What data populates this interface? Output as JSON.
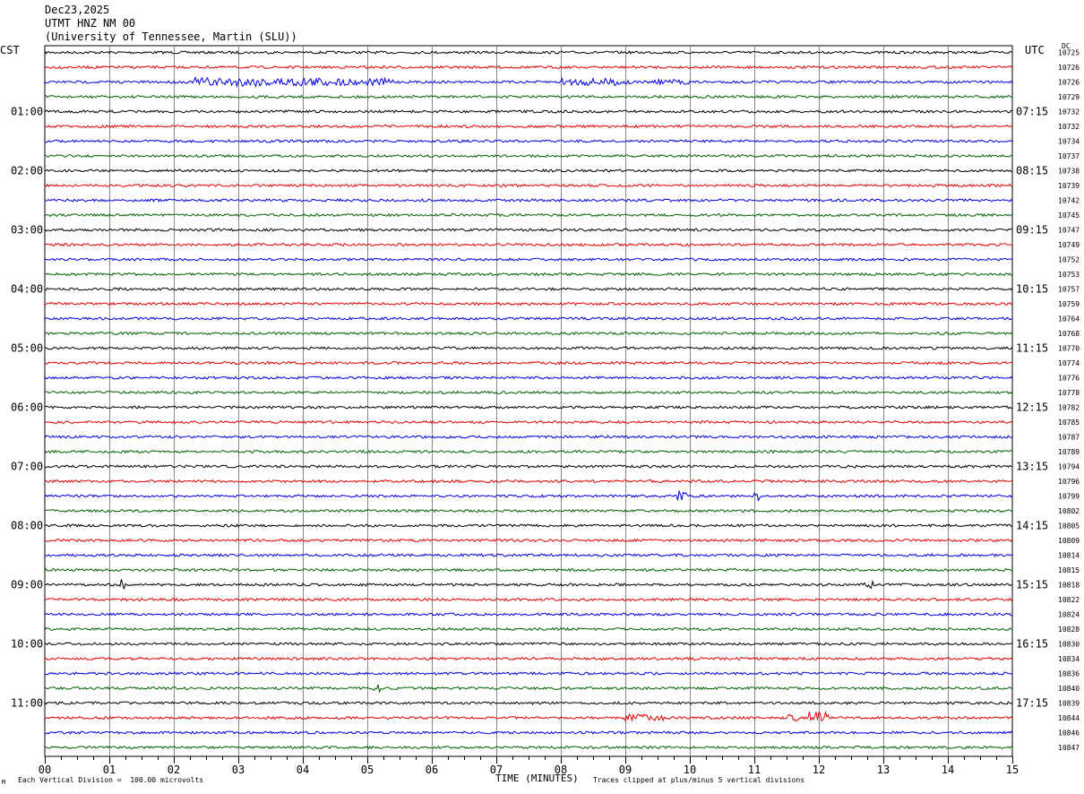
{
  "header": {
    "date": "Dec23,2025",
    "station": "UTMT HNZ NM 00",
    "institution": "(University of Tennessee, Martin (SLU))"
  },
  "left_zone_label": "CST",
  "right_zone_label": "UTC",
  "dc_label": "DC",
  "footer": {
    "scale_note": "Each Vertical Division =  100.00 microvolts",
    "xlabel": "TIME (MINUTES)",
    "clip_note": "Traces clipped at plus/minus 5 vertical divisions",
    "corner_mark": "M"
  },
  "trace_colors": [
    "#000000",
    "#e00000",
    "#0000e0",
    "#006000"
  ],
  "chart_data": {
    "type": "line",
    "title": "UTMT HNZ NM 00",
    "xlabel": "TIME (MINUTES)",
    "xlim": [
      0,
      15
    ],
    "x_ticks": [
      "00",
      "01",
      "02",
      "03",
      "04",
      "05",
      "06",
      "07",
      "08",
      "09",
      "10",
      "11",
      "12",
      "13",
      "14",
      "15"
    ],
    "rows": 48,
    "left_hour_labels": [
      "01:00",
      "02:00",
      "03:00",
      "04:00",
      "05:00",
      "06:00",
      "07:00",
      "08:00",
      "09:00",
      "10:00",
      "11:00"
    ],
    "right_hour_labels": [
      "07:15",
      "08:15",
      "09:15",
      "10:15",
      "11:15",
      "12:15",
      "13:15",
      "14:15",
      "15:15",
      "16:15",
      "17:15"
    ],
    "dc_offsets": [
      "10725",
      "10726",
      "10726",
      "10729",
      "10732",
      "10732",
      "10734",
      "10737",
      "10738",
      "10739",
      "10742",
      "10745",
      "10747",
      "10749",
      "10752",
      "10753",
      "10757",
      "10759",
      "10764",
      "10768",
      "10770",
      "10774",
      "10776",
      "10778",
      "10782",
      "10785",
      "10787",
      "10789",
      "10794",
      "10796",
      "10799",
      "10802",
      "10805",
      "10809",
      "10814",
      "10815",
      "10818",
      "10822",
      "10824",
      "10828",
      "10830",
      "10834",
      "10836",
      "10840",
      "10839",
      "10844",
      "10846",
      "10847"
    ],
    "events": [
      {
        "row": 2,
        "start_min": 2.3,
        "end_min": 4.4,
        "amp": 5
      },
      {
        "row": 2,
        "start_min": 4.5,
        "end_min": 5.4,
        "amp": 4
      },
      {
        "row": 2,
        "start_min": 8.0,
        "end_min": 9.1,
        "amp": 4
      },
      {
        "row": 2,
        "start_min": 9.4,
        "end_min": 10.0,
        "amp": 3
      },
      {
        "row": 30,
        "start_min": 9.8,
        "end_min": 9.95,
        "amp": 6
      },
      {
        "row": 30,
        "start_min": 11.0,
        "end_min": 11.1,
        "amp": 5
      },
      {
        "row": 36,
        "start_min": 1.15,
        "end_min": 1.25,
        "amp": 9
      },
      {
        "row": 36,
        "start_min": 12.7,
        "end_min": 12.85,
        "amp": 4
      },
      {
        "row": 43,
        "start_min": 5.1,
        "end_min": 5.2,
        "amp": 5
      },
      {
        "row": 45,
        "start_min": 9.0,
        "end_min": 9.6,
        "amp": 4
      },
      {
        "row": 45,
        "start_min": 11.5,
        "end_min": 11.7,
        "amp": 5
      },
      {
        "row": 45,
        "start_min": 11.85,
        "end_min": 12.15,
        "amp": 8
      }
    ]
  }
}
